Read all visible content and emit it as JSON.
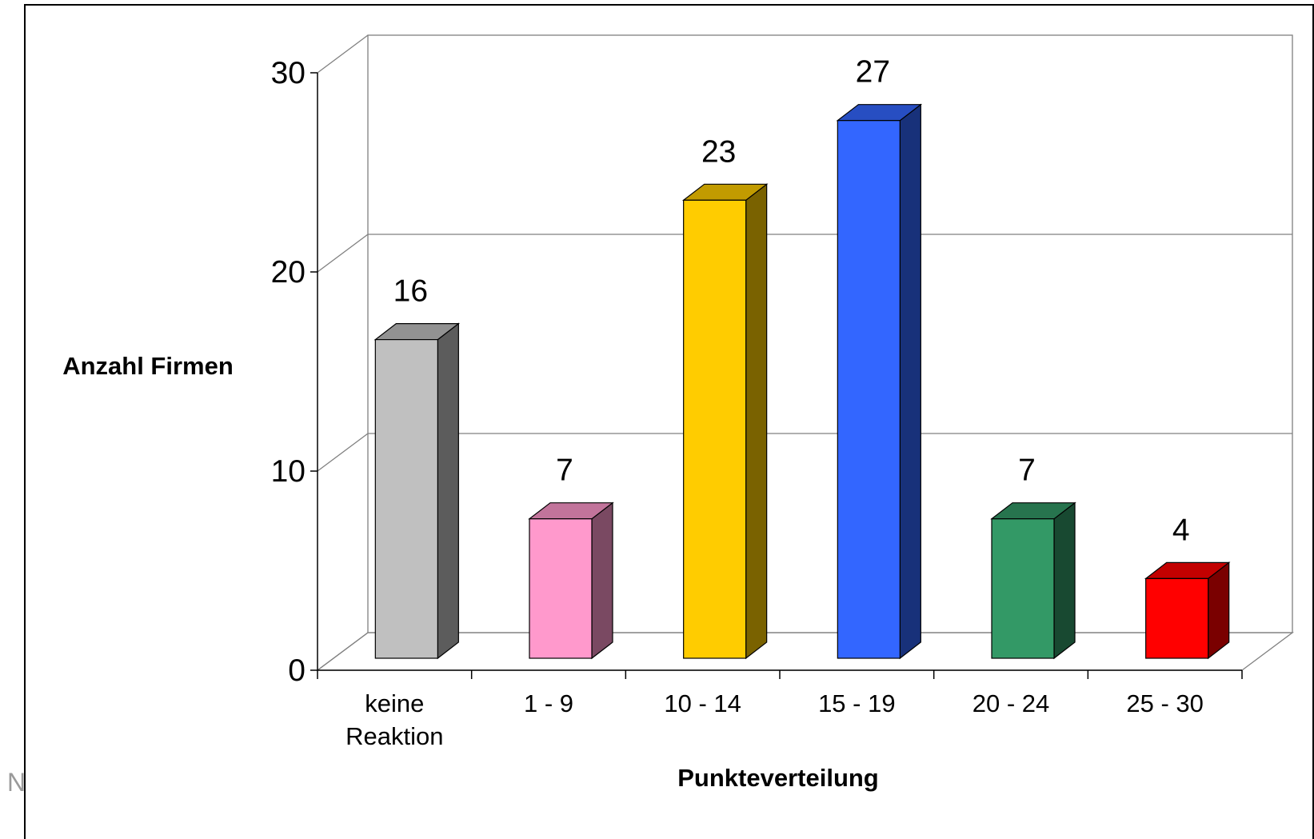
{
  "chart_data": {
    "type": "bar",
    "style": "3d-column",
    "title": "",
    "categories": [
      [
        "keine",
        "Reaktion"
      ],
      [
        "1 - 9"
      ],
      [
        "10 - 14"
      ],
      [
        "15 - 19"
      ],
      [
        "20 - 24"
      ],
      [
        "25 - 30"
      ]
    ],
    "values": [
      16,
      7,
      23,
      27,
      7,
      4
    ],
    "data_labels": [
      "16",
      "7",
      "23",
      "27",
      "7",
      "4"
    ],
    "colors": [
      "#c0c0c0",
      "#ff99cc",
      "#ffcc00",
      "#3366ff",
      "#339966",
      "#ff0000"
    ],
    "xlabel": "Punkteverteilung",
    "ylabel": "Anzahl Firmen",
    "ylim": [
      0,
      30
    ],
    "yticks": [
      0,
      10,
      20,
      30
    ],
    "grid": true,
    "legend": "none"
  },
  "corner_text": "N"
}
